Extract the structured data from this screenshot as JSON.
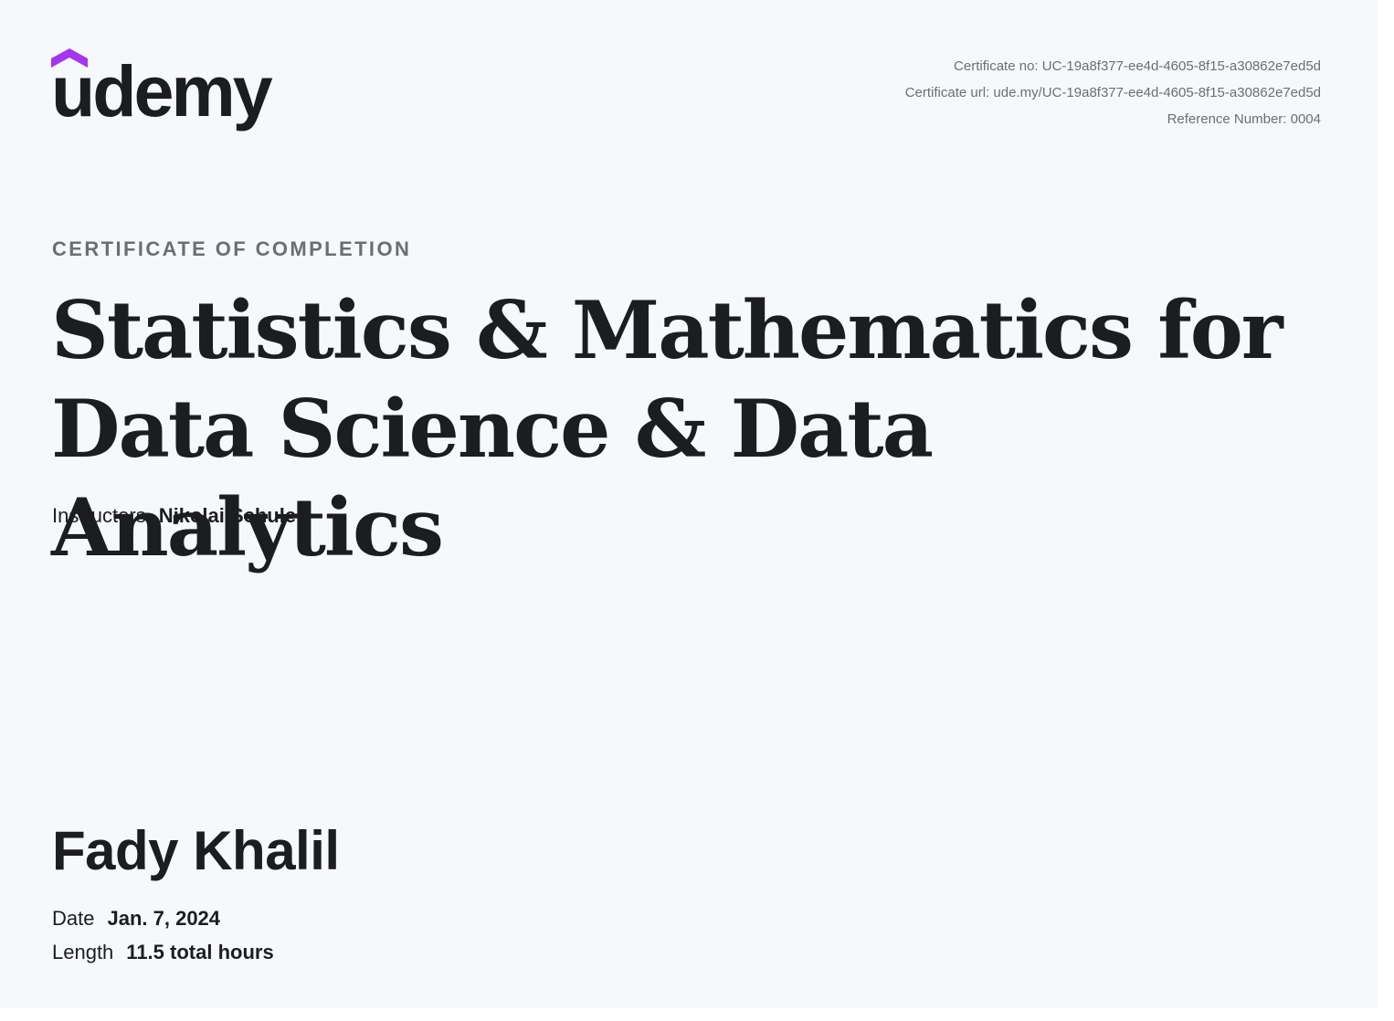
{
  "brand": {
    "name": "udemy",
    "accent_color": "#a435f0",
    "text_color": "#1c1d1f"
  },
  "meta": {
    "certificate_no": "Certificate no: UC-19a8f377-ee4d-4605-8f15-a30862e7ed5d",
    "certificate_url": "Certificate url: ude.my/UC-19a8f377-ee4d-4605-8f15-a30862e7ed5d",
    "reference_number": "Reference Number: 0004"
  },
  "certificate": {
    "overline": "CERTIFICATE OF COMPLETION",
    "title_line1": "Statistics & Mathematics for",
    "title_line2": "Data Science & Data Analytics",
    "instructors_label": "Instructors",
    "instructors_value": "Nikolai Schuler",
    "recipient_name": "Fady Khalil",
    "date_label": "Date",
    "date_value": "Jan. 7, 2024",
    "length_label": "Length",
    "length_value": "11.5 total hours"
  }
}
